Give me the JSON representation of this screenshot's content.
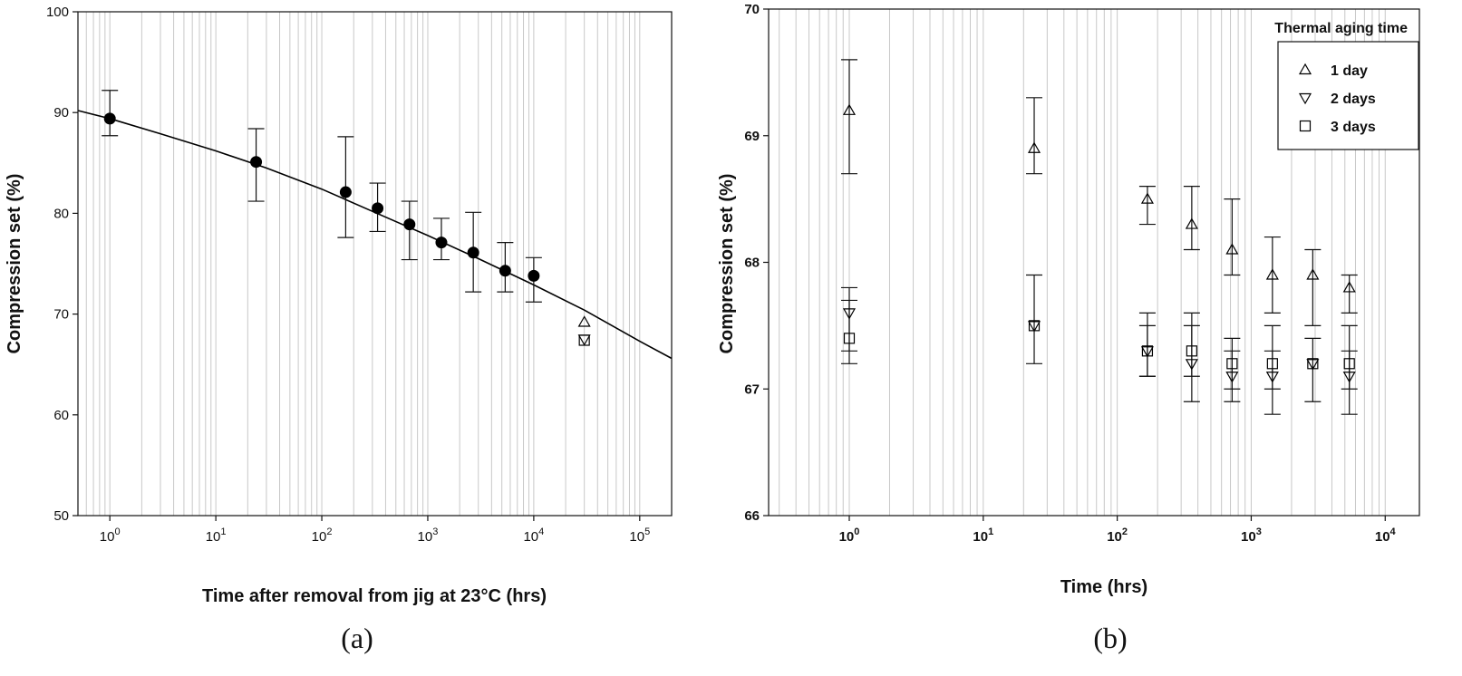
{
  "chart_data": [
    {
      "type": "scatter",
      "panel_label": "(a)",
      "xlabel": "Time after removal from jig at 23°C (hrs)",
      "ylabel": "Compression set (%)",
      "x_scale": "log",
      "xlim": [
        0.5,
        200000
      ],
      "ylim": [
        50,
        100
      ],
      "x_ticks": [
        1,
        10,
        100,
        1000,
        10000,
        100000
      ],
      "x_tick_labels": [
        {
          "base": "10",
          "exp": "0"
        },
        {
          "base": "10",
          "exp": "1"
        },
        {
          "base": "10",
          "exp": "2"
        },
        {
          "base": "10",
          "exp": "3"
        },
        {
          "base": "10",
          "exp": "4"
        },
        {
          "base": "10",
          "exp": "5"
        }
      ],
      "y_ticks": [
        50,
        60,
        70,
        80,
        90,
        100
      ],
      "grid": "vertical minor log gridlines",
      "series": [
        {
          "marker": "filled-circle",
          "points": [
            {
              "x": 1,
              "y": 89.4,
              "err_low": 87.7,
              "err_high": 92.2
            },
            {
              "x": 24,
              "y": 85.1,
              "err_low": 81.2,
              "err_high": 88.4
            },
            {
              "x": 168,
              "y": 82.1,
              "err_low": 77.6,
              "err_high": 87.6
            },
            {
              "x": 336,
              "y": 80.5,
              "err_low": 78.2,
              "err_high": 83.0
            },
            {
              "x": 672,
              "y": 78.9,
              "err_low": 75.4,
              "err_high": 81.2
            },
            {
              "x": 1344,
              "y": 77.1,
              "err_low": 75.4,
              "err_high": 79.5
            },
            {
              "x": 2688,
              "y": 76.1,
              "err_low": 72.2,
              "err_high": 80.1
            },
            {
              "x": 5376,
              "y": 74.3,
              "err_low": 72.2,
              "err_high": 77.1
            },
            {
              "x": 10000,
              "y": 73.8,
              "err_low": 71.2,
              "err_high": 75.6
            }
          ]
        },
        {
          "marker": "triangle-up",
          "points": [
            {
              "x": 30000,
              "y": 69.2
            }
          ]
        },
        {
          "marker": "triangle-down",
          "points": [
            {
              "x": 30000,
              "y": 67.5
            }
          ]
        },
        {
          "marker": "square",
          "points": [
            {
              "x": 30000,
              "y": 67.4
            }
          ]
        },
        {
          "type": "line",
          "x": [
            0.5,
            1,
            3,
            10,
            30,
            100,
            300,
            1000,
            3000,
            10000,
            30000,
            100000,
            200000
          ],
          "y": [
            90.2,
            89.4,
            87.9,
            86.2,
            84.5,
            82.4,
            80.2,
            77.8,
            75.5,
            72.9,
            70.4,
            67.3,
            65.6
          ]
        }
      ]
    },
    {
      "type": "scatter",
      "panel_label": "(b)",
      "xlabel": "Time (hrs)",
      "ylabel": "Compression set (%)",
      "x_scale": "log",
      "xlim": [
        0.25,
        18000
      ],
      "ylim": [
        66,
        70
      ],
      "x_ticks": [
        1,
        10,
        100,
        1000,
        10000
      ],
      "x_tick_labels": [
        {
          "base": "10",
          "exp": "0"
        },
        {
          "base": "10",
          "exp": "1"
        },
        {
          "base": "10",
          "exp": "2"
        },
        {
          "base": "10",
          "exp": "3"
        },
        {
          "base": "10",
          "exp": "4"
        }
      ],
      "y_ticks": [
        66,
        67,
        68,
        69,
        70
      ],
      "grid": "vertical minor log gridlines",
      "legend": {
        "title": "Thermal aging time",
        "position": "top-right",
        "entries": [
          "1 day",
          "2 days",
          "3 days"
        ]
      },
      "series": [
        {
          "name": "1 day",
          "marker": "triangle-up",
          "points": [
            {
              "x": 1,
              "y": 69.2,
              "err_low": 68.7,
              "err_high": 69.6
            },
            {
              "x": 24,
              "y": 68.9,
              "err_low": 68.7,
              "err_high": 69.3
            },
            {
              "x": 168,
              "y": 68.5,
              "err_low": 68.3,
              "err_high": 68.6
            },
            {
              "x": 360,
              "y": 68.3,
              "err_low": 68.1,
              "err_high": 68.6
            },
            {
              "x": 720,
              "y": 68.1,
              "err_low": 67.9,
              "err_high": 68.5
            },
            {
              "x": 1440,
              "y": 67.9,
              "err_low": 67.6,
              "err_high": 68.2
            },
            {
              "x": 2880,
              "y": 67.9,
              "err_low": 67.5,
              "err_high": 68.1
            },
            {
              "x": 5400,
              "y": 67.8,
              "err_low": 67.6,
              "err_high": 67.9
            }
          ]
        },
        {
          "name": "2 days",
          "marker": "triangle-down",
          "points": [
            {
              "x": 1,
              "y": 67.6,
              "err_low": 67.3,
              "err_high": 67.8
            },
            {
              "x": 24,
              "y": 67.5,
              "err_low": 67.2,
              "err_high": 67.9
            },
            {
              "x": 168,
              "y": 67.3,
              "err_low": 67.1,
              "err_high": 67.6
            },
            {
              "x": 360,
              "y": 67.2,
              "err_low": 66.9,
              "err_high": 67.6
            },
            {
              "x": 720,
              "y": 67.1,
              "err_low": 66.9,
              "err_high": 67.4
            },
            {
              "x": 1440,
              "y": 67.1,
              "err_low": 66.8,
              "err_high": 67.5
            },
            {
              "x": 2880,
              "y": 67.2,
              "err_low": 66.9,
              "err_high": 67.4
            },
            {
              "x": 5400,
              "y": 67.1,
              "err_low": 66.8,
              "err_high": 67.5
            }
          ]
        },
        {
          "name": "3 days",
          "marker": "square",
          "points": [
            {
              "x": 1,
              "y": 67.4,
              "err_low": 67.2,
              "err_high": 67.7
            },
            {
              "x": 24,
              "y": 67.5
            },
            {
              "x": 168,
              "y": 67.3,
              "err_low": 67.1,
              "err_high": 67.5
            },
            {
              "x": 360,
              "y": 67.3,
              "err_low": 67.1,
              "err_high": 67.5
            },
            {
              "x": 720,
              "y": 67.2,
              "err_low": 67.0,
              "err_high": 67.3
            },
            {
              "x": 1440,
              "y": 67.2,
              "err_low": 67.0,
              "err_high": 67.3
            },
            {
              "x": 2880,
              "y": 67.2
            },
            {
              "x": 5400,
              "y": 67.2,
              "err_low": 67.0,
              "err_high": 67.3
            }
          ]
        }
      ]
    }
  ]
}
